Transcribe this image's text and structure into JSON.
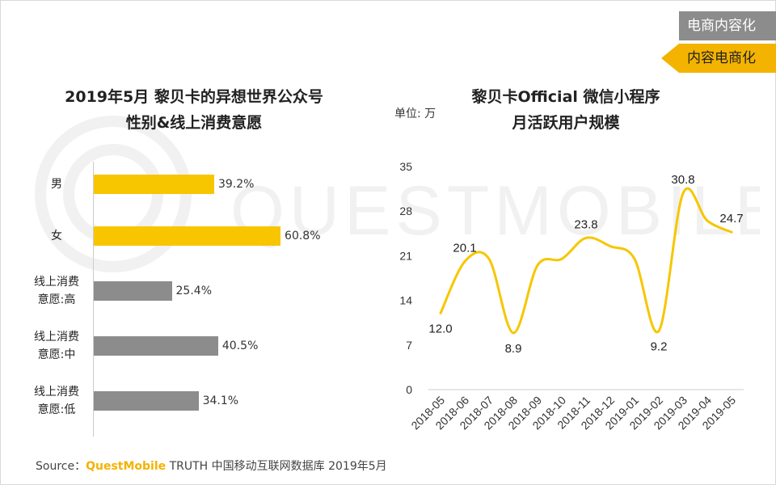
{
  "tags": {
    "gray": "电商内容化",
    "yellow": "内容电商化"
  },
  "watermark": "QUESTMOBILE",
  "left": {
    "title_line1": "2019年5月 黎贝卡的异想世界公众号",
    "title_line2": "性别&线上消费意愿"
  },
  "right": {
    "title_line1": "黎贝卡Official 微信小程序",
    "title_line2": "月活跃用户规模",
    "unit": "单位: 万"
  },
  "chart_data": [
    {
      "type": "bar",
      "orientation": "horizontal",
      "categories": [
        {
          "line1": "男",
          "line2": ""
        },
        {
          "line1": "女",
          "line2": ""
        },
        {
          "line1": "线上消费",
          "line2": "意愿:高"
        },
        {
          "line1": "线上消费",
          "line2": "意愿:中"
        },
        {
          "line1": "线上消费",
          "line2": "意愿:低"
        }
      ],
      "values": [
        39.2,
        60.8,
        25.4,
        40.5,
        34.1
      ],
      "value_labels": [
        "39.2%",
        "60.8%",
        "25.4%",
        "40.5%",
        "34.1%"
      ],
      "colors": [
        "#f7c600",
        "#f7c600",
        "#8c8c8c",
        "#8c8c8c",
        "#8c8c8c"
      ]
    },
    {
      "type": "line",
      "smooth": true,
      "color": "#f7c600",
      "x": [
        "2018-05",
        "2018-06",
        "2018-07",
        "2018-08",
        "2018-09",
        "2018-10",
        "2018-11",
        "2018-12",
        "2019-01",
        "2019-02",
        "2019-03",
        "2019-04",
        "2019-05"
      ],
      "y": [
        12.0,
        20.1,
        20.5,
        8.9,
        19.5,
        20.5,
        23.8,
        22.5,
        20.5,
        9.2,
        30.8,
        26.5,
        24.7
      ],
      "labels": [
        {
          "index": 0,
          "text": "12.0",
          "pos": "below"
        },
        {
          "index": 1,
          "text": "20.1",
          "pos": "above"
        },
        {
          "index": 3,
          "text": "8.9",
          "pos": "below"
        },
        {
          "index": 6,
          "text": "23.8",
          "pos": "above"
        },
        {
          "index": 9,
          "text": "9.2",
          "pos": "below"
        },
        {
          "index": 10,
          "text": "30.8",
          "pos": "above"
        },
        {
          "index": 12,
          "text": "24.7",
          "pos": "above"
        }
      ],
      "ylim": [
        0,
        35
      ],
      "yticks": [
        "0",
        "7",
        "14",
        "21",
        "28",
        "35"
      ]
    }
  ],
  "footer": {
    "source_label": "Source：",
    "brand": "QuestMobile",
    "text": " TRUTH 中国移动互联网数据库 2019年5月"
  }
}
